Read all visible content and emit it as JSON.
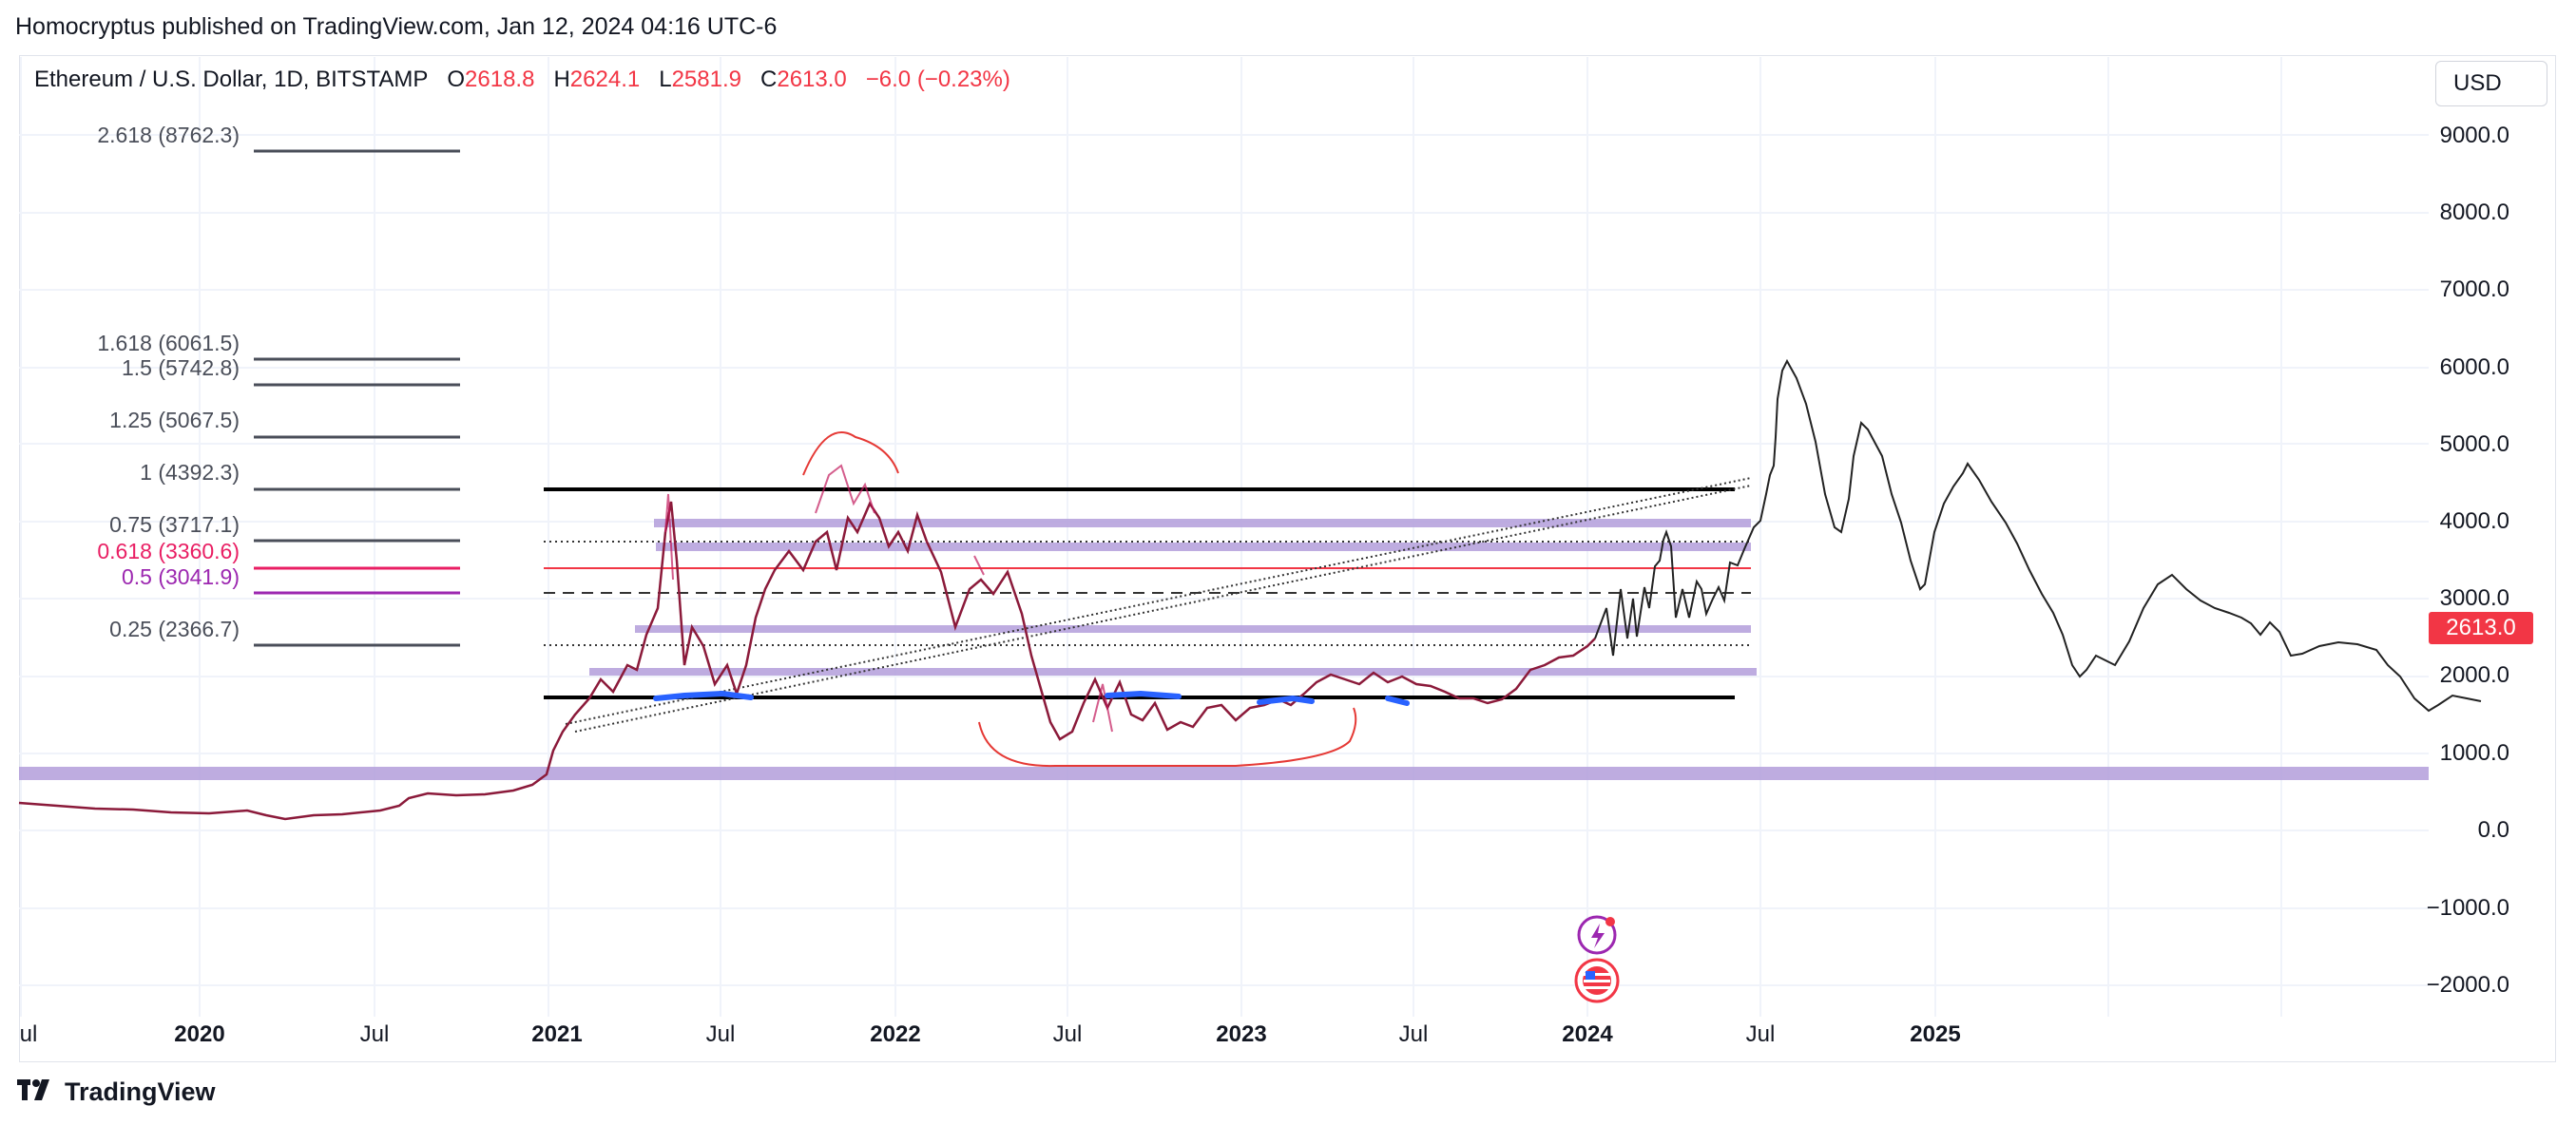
{
  "header": {
    "publisher_text": "Homocryptus published on TradingView.com, Jan 12, 2024 04:16 UTC-6"
  },
  "legend": {
    "symbol": "Ethereum / U.S. Dollar, 1D, BITSTAMP",
    "open_label": "O",
    "open": "2618.8",
    "high_label": "H",
    "high": "2624.1",
    "low_label": "L",
    "low": "2581.9",
    "close_label": "C",
    "close": "2613.0",
    "change": "−6.0 (−0.23%)"
  },
  "toolbar": {
    "currency_button": "USD"
  },
  "price_scale": {
    "labels": [
      "9000.0",
      "8000.0",
      "7000.0",
      "6000.0",
      "5000.0",
      "4000.0",
      "3000.0",
      "2000.0",
      "1000.0",
      "0.0",
      "−1000.0",
      "−2000.0"
    ],
    "last_price": "2613.0"
  },
  "time_scale": {
    "labels": [
      {
        "text": "ul",
        "bold": false
      },
      {
        "text": "2020",
        "bold": true
      },
      {
        "text": "Jul",
        "bold": false
      },
      {
        "text": "2021",
        "bold": true
      },
      {
        "text": "Jul",
        "bold": false
      },
      {
        "text": "2022",
        "bold": true
      },
      {
        "text": "Jul",
        "bold": false
      },
      {
        "text": "2023",
        "bold": true
      },
      {
        "text": "Jul",
        "bold": false
      },
      {
        "text": "2024",
        "bold": true
      },
      {
        "text": "Jul",
        "bold": false
      },
      {
        "text": "2025",
        "bold": true
      }
    ]
  },
  "fib_levels": [
    {
      "text": "2.618 (8762.3)",
      "color": "#4a4e59"
    },
    {
      "text": "1.618 (6061.5)",
      "color": "#4a4e59"
    },
    {
      "text": "1.5 (5742.8)",
      "color": "#4a4e59"
    },
    {
      "text": "1.25 (5067.5)",
      "color": "#4a4e59"
    },
    {
      "text": "1 (4392.3)",
      "color": "#4a4e59"
    },
    {
      "text": "0.75 (3717.1)",
      "color": "#4a4e59"
    },
    {
      "text": "0.618 (3360.6)",
      "color": "#e91e63"
    },
    {
      "text": "0.5 (3041.9)",
      "color": "#9c27b0"
    },
    {
      "text": "0.25 (2366.7)",
      "color": "#4a4e59"
    }
  ],
  "colors": {
    "zone_band": "#b39ddb",
    "candle_down": "#c2185b",
    "bracket_red": "#e53935",
    "highlight_blue": "#2962ff",
    "price_tag": "#f23645",
    "grid": "#f0f3fa"
  },
  "icons": [
    "lightning-event-icon",
    "us-flag-event-icon",
    "tradingview-logo-icon"
  ],
  "footer": {
    "brand": "TradingView"
  }
}
